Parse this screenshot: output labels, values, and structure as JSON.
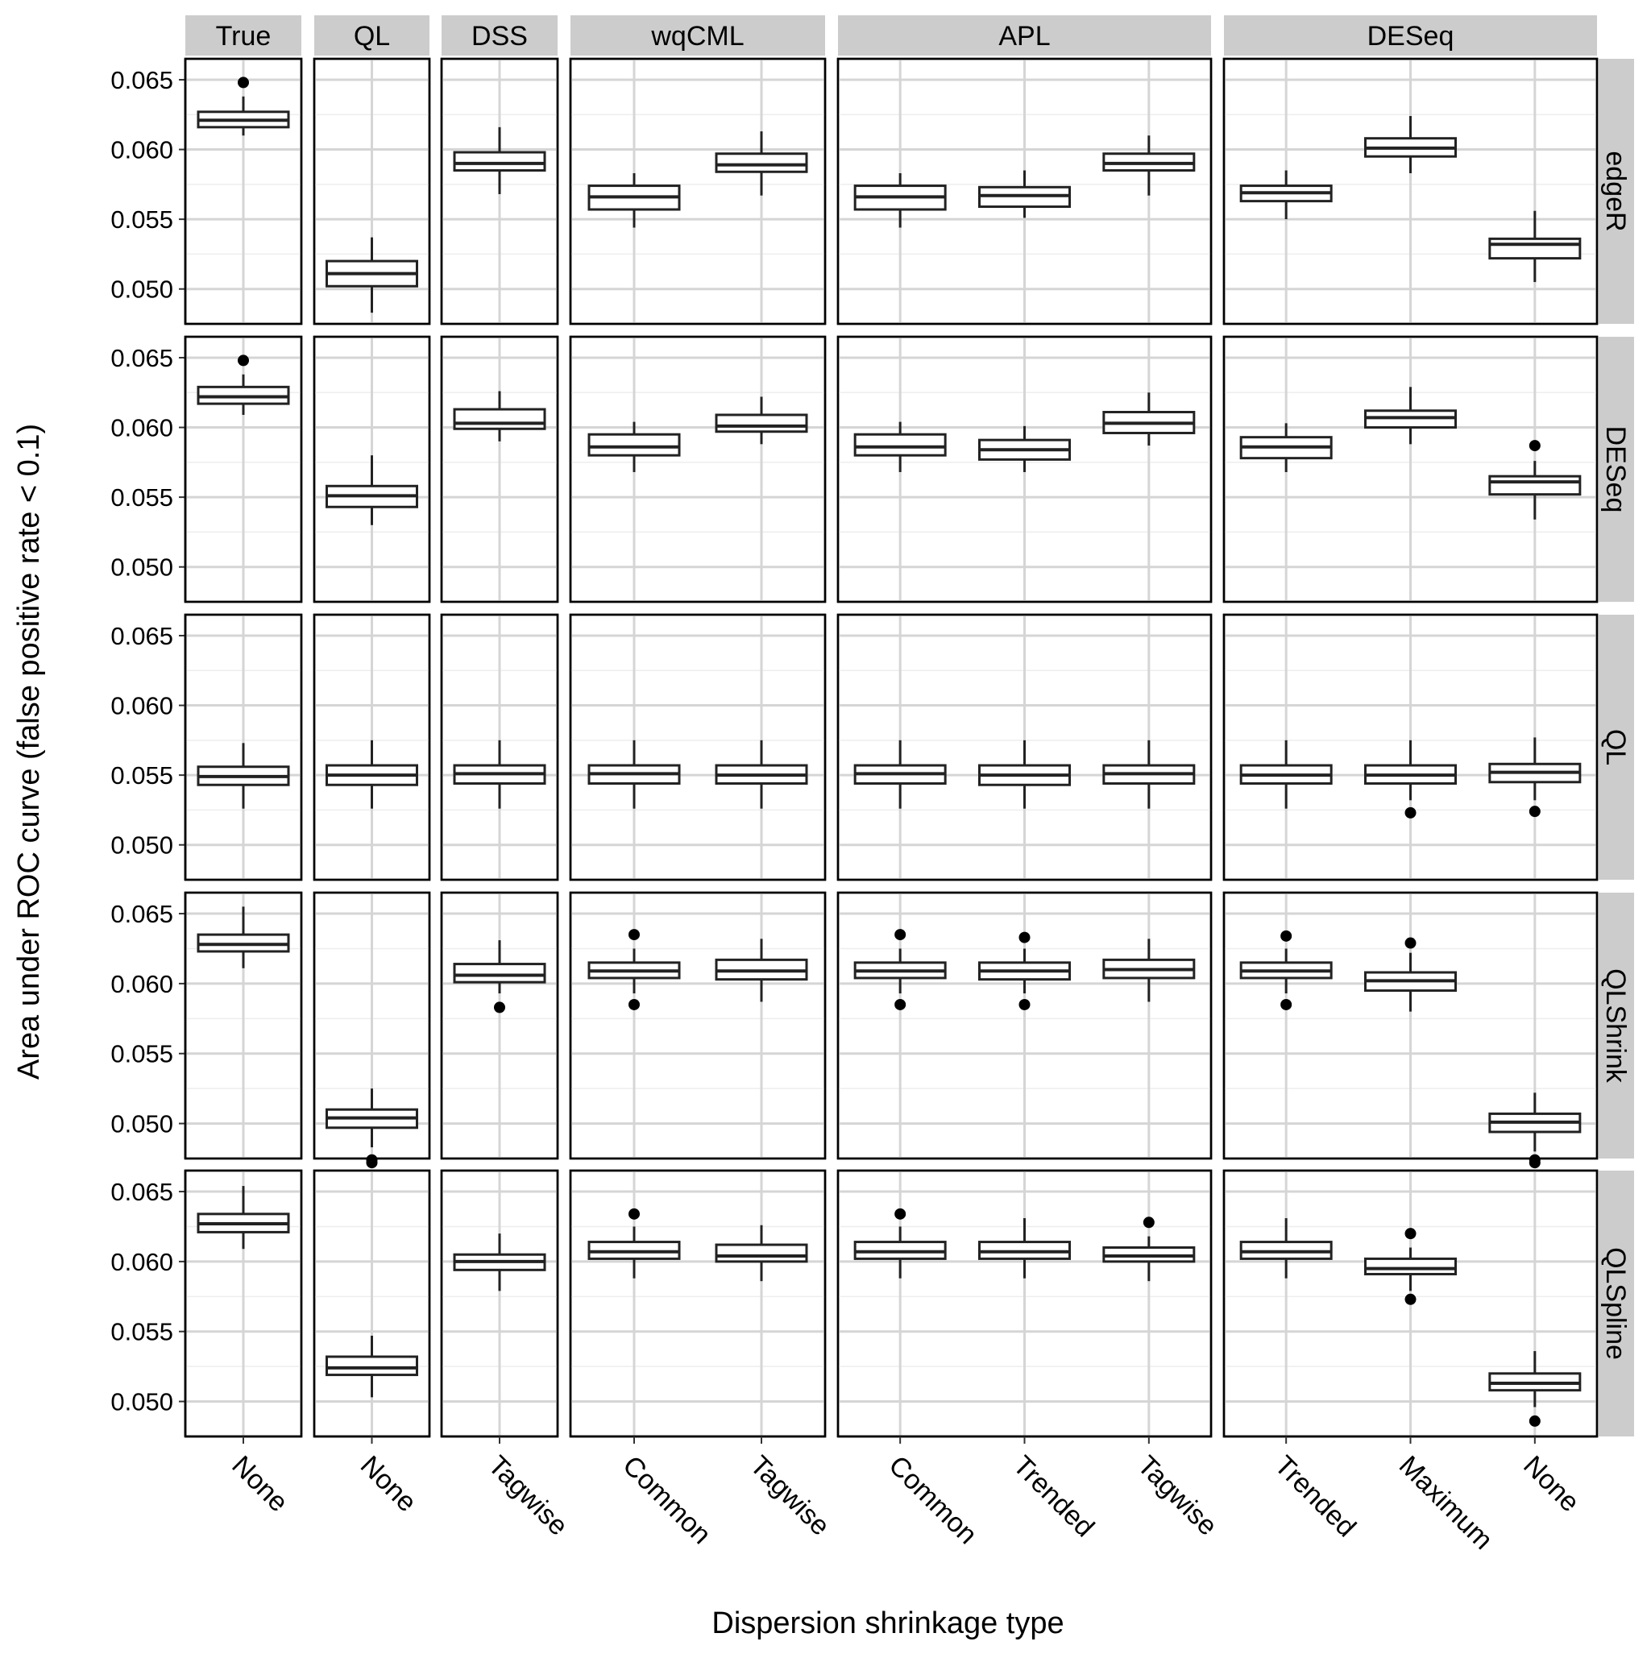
{
  "chart_data": {
    "type": "boxplot",
    "title": "",
    "xlabel": "Dispersion shrinkage type",
    "ylabel": "Area under ROC curve (false positive rate < 0.1)",
    "ylim": [
      0.0475,
      0.0665
    ],
    "y_ticks": [
      "0.050",
      "0.055",
      "0.060",
      "0.065"
    ],
    "grid": true,
    "column_facets": [
      {
        "label": "True",
        "categories": [
          "None"
        ]
      },
      {
        "label": "QL",
        "categories": [
          "None"
        ]
      },
      {
        "label": "DSS",
        "categories": [
          "Tagwise"
        ]
      },
      {
        "label": "wqCML",
        "categories": [
          "Common",
          "Tagwise"
        ]
      },
      {
        "label": "APL",
        "categories": [
          "Common",
          "Trended",
          "Tagwise"
        ]
      },
      {
        "label": "DESeq",
        "categories": [
          "Trended",
          "Maximum",
          "None"
        ]
      }
    ],
    "row_facets": [
      "edgeR",
      "DESeq",
      "QL",
      "QLShrink",
      "QLSpline"
    ],
    "boxes": [
      [
        [
          {
            "lo": 0.061,
            "q1": 0.0616,
            "med": 0.0621,
            "q3": 0.0627,
            "hi": 0.0638,
            "out": [
              0.0648
            ]
          }
        ],
        [
          {
            "lo": 0.0483,
            "q1": 0.0502,
            "med": 0.0511,
            "q3": 0.052,
            "hi": 0.0537,
            "out": []
          }
        ],
        [
          {
            "lo": 0.0568,
            "q1": 0.0585,
            "med": 0.059,
            "q3": 0.0598,
            "hi": 0.0616,
            "out": []
          }
        ],
        [
          {
            "lo": 0.0544,
            "q1": 0.0557,
            "med": 0.0566,
            "q3": 0.0574,
            "hi": 0.0583,
            "out": []
          },
          {
            "lo": 0.0567,
            "q1": 0.0584,
            "med": 0.0589,
            "q3": 0.0597,
            "hi": 0.0613,
            "out": []
          }
        ],
        [
          {
            "lo": 0.0544,
            "q1": 0.0557,
            "med": 0.0566,
            "q3": 0.0574,
            "hi": 0.0583,
            "out": []
          },
          {
            "lo": 0.0551,
            "q1": 0.0559,
            "med": 0.0567,
            "q3": 0.0573,
            "hi": 0.0585,
            "out": []
          },
          {
            "lo": 0.0567,
            "q1": 0.0585,
            "med": 0.059,
            "q3": 0.0597,
            "hi": 0.061,
            "out": []
          }
        ],
        [
          {
            "lo": 0.055,
            "q1": 0.0563,
            "med": 0.0569,
            "q3": 0.0574,
            "hi": 0.0585,
            "out": []
          },
          {
            "lo": 0.0583,
            "q1": 0.0595,
            "med": 0.0601,
            "q3": 0.0608,
            "hi": 0.0624,
            "out": []
          },
          {
            "lo": 0.0505,
            "q1": 0.0522,
            "med": 0.0532,
            "q3": 0.0536,
            "hi": 0.0556,
            "out": []
          }
        ]
      ],
      [
        [
          {
            "lo": 0.0609,
            "q1": 0.0617,
            "med": 0.0622,
            "q3": 0.0629,
            "hi": 0.0638,
            "out": [
              0.0648
            ]
          }
        ],
        [
          {
            "lo": 0.053,
            "q1": 0.0543,
            "med": 0.0551,
            "q3": 0.0558,
            "hi": 0.058,
            "out": []
          }
        ],
        [
          {
            "lo": 0.059,
            "q1": 0.0599,
            "med": 0.0603,
            "q3": 0.0613,
            "hi": 0.0626,
            "out": []
          }
        ],
        [
          {
            "lo": 0.0568,
            "q1": 0.058,
            "med": 0.0586,
            "q3": 0.0595,
            "hi": 0.0604,
            "out": []
          },
          {
            "lo": 0.0588,
            "q1": 0.0597,
            "med": 0.0601,
            "q3": 0.0609,
            "hi": 0.0622,
            "out": []
          }
        ],
        [
          {
            "lo": 0.0568,
            "q1": 0.058,
            "med": 0.0586,
            "q3": 0.0595,
            "hi": 0.0604,
            "out": []
          },
          {
            "lo": 0.0568,
            "q1": 0.0577,
            "med": 0.0584,
            "q3": 0.0591,
            "hi": 0.0601,
            "out": []
          },
          {
            "lo": 0.0587,
            "q1": 0.0596,
            "med": 0.0603,
            "q3": 0.0611,
            "hi": 0.0625,
            "out": []
          }
        ],
        [
          {
            "lo": 0.0568,
            "q1": 0.0578,
            "med": 0.0586,
            "q3": 0.0593,
            "hi": 0.0603,
            "out": []
          },
          {
            "lo": 0.0588,
            "q1": 0.06,
            "med": 0.0607,
            "q3": 0.0612,
            "hi": 0.0629,
            "out": []
          },
          {
            "lo": 0.0534,
            "q1": 0.0552,
            "med": 0.0561,
            "q3": 0.0565,
            "hi": 0.0576,
            "out": [
              0.0587
            ]
          }
        ]
      ],
      [
        [
          {
            "lo": 0.0526,
            "q1": 0.0543,
            "med": 0.0549,
            "q3": 0.0556,
            "hi": 0.0573,
            "out": []
          }
        ],
        [
          {
            "lo": 0.0526,
            "q1": 0.0543,
            "med": 0.055,
            "q3": 0.0557,
            "hi": 0.0575,
            "out": []
          }
        ],
        [
          {
            "lo": 0.0526,
            "q1": 0.0544,
            "med": 0.0551,
            "q3": 0.0557,
            "hi": 0.0575,
            "out": []
          }
        ],
        [
          {
            "lo": 0.0526,
            "q1": 0.0544,
            "med": 0.0551,
            "q3": 0.0557,
            "hi": 0.0575,
            "out": []
          },
          {
            "lo": 0.0526,
            "q1": 0.0544,
            "med": 0.055,
            "q3": 0.0557,
            "hi": 0.0575,
            "out": []
          }
        ],
        [
          {
            "lo": 0.0526,
            "q1": 0.0544,
            "med": 0.0551,
            "q3": 0.0557,
            "hi": 0.0575,
            "out": []
          },
          {
            "lo": 0.0526,
            "q1": 0.0543,
            "med": 0.055,
            "q3": 0.0557,
            "hi": 0.0575,
            "out": []
          },
          {
            "lo": 0.0526,
            "q1": 0.0544,
            "med": 0.0551,
            "q3": 0.0557,
            "hi": 0.0575,
            "out": []
          }
        ],
        [
          {
            "lo": 0.0526,
            "q1": 0.0544,
            "med": 0.055,
            "q3": 0.0557,
            "hi": 0.0575,
            "out": []
          },
          {
            "lo": 0.0532,
            "q1": 0.0544,
            "med": 0.055,
            "q3": 0.0557,
            "hi": 0.0575,
            "out": [
              0.0523
            ]
          },
          {
            "lo": 0.0532,
            "q1": 0.0545,
            "med": 0.0552,
            "q3": 0.0558,
            "hi": 0.0577,
            "out": [
              0.0524
            ]
          }
        ]
      ],
      [
        [
          {
            "lo": 0.0611,
            "q1": 0.0623,
            "med": 0.0628,
            "q3": 0.0635,
            "hi": 0.0655,
            "out": []
          }
        ],
        [
          {
            "lo": 0.0483,
            "q1": 0.0497,
            "med": 0.0504,
            "q3": 0.051,
            "hi": 0.0525,
            "out": [
              0.0472,
              0.0474
            ]
          }
        ],
        [
          {
            "lo": 0.0593,
            "q1": 0.0601,
            "med": 0.0606,
            "q3": 0.0614,
            "hi": 0.0631,
            "out": [
              0.0583
            ]
          }
        ],
        [
          {
            "lo": 0.0593,
            "q1": 0.0604,
            "med": 0.0609,
            "q3": 0.0615,
            "hi": 0.0625,
            "out": [
              0.0635,
              0.0585
            ]
          },
          {
            "lo": 0.0587,
            "q1": 0.0603,
            "med": 0.0609,
            "q3": 0.0617,
            "hi": 0.0632,
            "out": []
          }
        ],
        [
          {
            "lo": 0.0593,
            "q1": 0.0604,
            "med": 0.0609,
            "q3": 0.0615,
            "hi": 0.0625,
            "out": [
              0.0635,
              0.0585
            ]
          },
          {
            "lo": 0.0593,
            "q1": 0.0603,
            "med": 0.0609,
            "q3": 0.0615,
            "hi": 0.0625,
            "out": [
              0.0633,
              0.0585
            ]
          },
          {
            "lo": 0.0587,
            "q1": 0.0604,
            "med": 0.061,
            "q3": 0.0617,
            "hi": 0.0632,
            "out": []
          }
        ],
        [
          {
            "lo": 0.0593,
            "q1": 0.0604,
            "med": 0.0609,
            "q3": 0.0615,
            "hi": 0.0625,
            "out": [
              0.0634,
              0.0585
            ]
          },
          {
            "lo": 0.058,
            "q1": 0.0595,
            "med": 0.0602,
            "q3": 0.0608,
            "hi": 0.0622,
            "out": [
              0.0629
            ]
          },
          {
            "lo": 0.048,
            "q1": 0.0494,
            "med": 0.0501,
            "q3": 0.0507,
            "hi": 0.0522,
            "out": [
              0.0472,
              0.0474
            ]
          }
        ]
      ],
      [
        [
          {
            "lo": 0.0609,
            "q1": 0.0621,
            "med": 0.0627,
            "q3": 0.0634,
            "hi": 0.0654,
            "out": []
          }
        ],
        [
          {
            "lo": 0.0503,
            "q1": 0.0519,
            "med": 0.0524,
            "q3": 0.0532,
            "hi": 0.0547,
            "out": []
          }
        ],
        [
          {
            "lo": 0.0579,
            "q1": 0.0594,
            "med": 0.06,
            "q3": 0.0605,
            "hi": 0.062,
            "out": []
          }
        ],
        [
          {
            "lo": 0.0588,
            "q1": 0.0602,
            "med": 0.0607,
            "q3": 0.0614,
            "hi": 0.0625,
            "out": [
              0.0634
            ]
          },
          {
            "lo": 0.0586,
            "q1": 0.06,
            "med": 0.0604,
            "q3": 0.0612,
            "hi": 0.0626,
            "out": []
          }
        ],
        [
          {
            "lo": 0.0588,
            "q1": 0.0602,
            "med": 0.0607,
            "q3": 0.0614,
            "hi": 0.0625,
            "out": [
              0.0634
            ]
          },
          {
            "lo": 0.0588,
            "q1": 0.0602,
            "med": 0.0607,
            "q3": 0.0614,
            "hi": 0.0631,
            "out": []
          },
          {
            "lo": 0.0586,
            "q1": 0.06,
            "med": 0.0604,
            "q3": 0.061,
            "hi": 0.0618,
            "out": [
              0.0628
            ]
          }
        ],
        [
          {
            "lo": 0.0588,
            "q1": 0.0602,
            "med": 0.0607,
            "q3": 0.0614,
            "hi": 0.0631,
            "out": []
          },
          {
            "lo": 0.0579,
            "q1": 0.0591,
            "med": 0.0595,
            "q3": 0.0602,
            "hi": 0.061,
            "out": [
              0.062,
              0.0573
            ]
          },
          {
            "lo": 0.0496,
            "q1": 0.0508,
            "med": 0.0513,
            "q3": 0.052,
            "hi": 0.0536,
            "out": [
              0.0486
            ]
          }
        ]
      ]
    ]
  }
}
